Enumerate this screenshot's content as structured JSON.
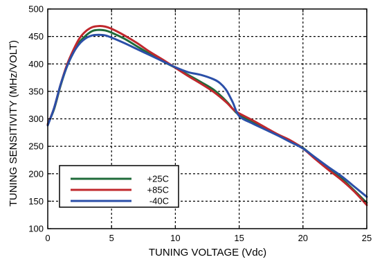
{
  "chart_data": {
    "type": "line",
    "title": "",
    "xlabel": "TUNING VOLTAGE (Vdc)",
    "ylabel": "TUNING SENSITIVITY (MHz/VOLT)",
    "xlim": [
      0,
      25
    ],
    "ylim": [
      100,
      500
    ],
    "xticks": [
      0,
      5,
      10,
      15,
      20,
      25
    ],
    "yticks": [
      100,
      150,
      200,
      250,
      300,
      350,
      400,
      450,
      500
    ],
    "grid": true,
    "grid_style": "dotted",
    "legend_position": "bottom-left",
    "series": [
      {
        "name": "+25C",
        "color": "#1f6b3a",
        "x": [
          0,
          0.5,
          1,
          1.5,
          2,
          2.5,
          3,
          3.5,
          4,
          4.5,
          5,
          6,
          7,
          8,
          9,
          10,
          11,
          12,
          13,
          14,
          14.5,
          15,
          16,
          17,
          18,
          19,
          20,
          21,
          22,
          23,
          24,
          25
        ],
        "y": [
          290,
          318,
          360,
          395,
          420,
          440,
          452,
          460,
          462,
          461,
          457,
          446,
          432,
          418,
          405,
          393,
          380,
          367,
          353,
          332,
          318,
          307,
          295,
          283,
          272,
          260,
          247,
          228,
          210,
          192,
          170,
          147
        ]
      },
      {
        "name": "+85C",
        "color": "#c0282d",
        "x": [
          0,
          0.5,
          1,
          1.5,
          2,
          2.5,
          3,
          3.5,
          4,
          4.5,
          5,
          6,
          7,
          8,
          9,
          10,
          11,
          12,
          13,
          14,
          14.5,
          15,
          16,
          17,
          18,
          19,
          20,
          21,
          22,
          23,
          24,
          25
        ],
        "y": [
          290,
          320,
          362,
          398,
          425,
          447,
          460,
          467,
          469,
          468,
          464,
          452,
          438,
          422,
          408,
          393,
          378,
          364,
          349,
          330,
          318,
          310,
          298,
          285,
          272,
          261,
          246,
          226,
          207,
          189,
          168,
          143
        ]
      },
      {
        "name": "-40C",
        "color": "#2b4fa8",
        "x": [
          0,
          0.5,
          1,
          1.5,
          2,
          2.5,
          3,
          3.5,
          4,
          4.5,
          5,
          6,
          7,
          8,
          9,
          10,
          11,
          12,
          13,
          13.5,
          14,
          14.5,
          15,
          16,
          17,
          18,
          19,
          20,
          21,
          22,
          23,
          24,
          25
        ],
        "y": [
          288,
          320,
          362,
          395,
          420,
          437,
          447,
          452,
          453,
          452,
          448,
          438,
          427,
          416,
          405,
          394,
          385,
          380,
          372,
          365,
          352,
          330,
          305,
          292,
          281,
          270,
          258,
          246,
          229,
          212,
          196,
          177,
          158
        ]
      }
    ]
  }
}
